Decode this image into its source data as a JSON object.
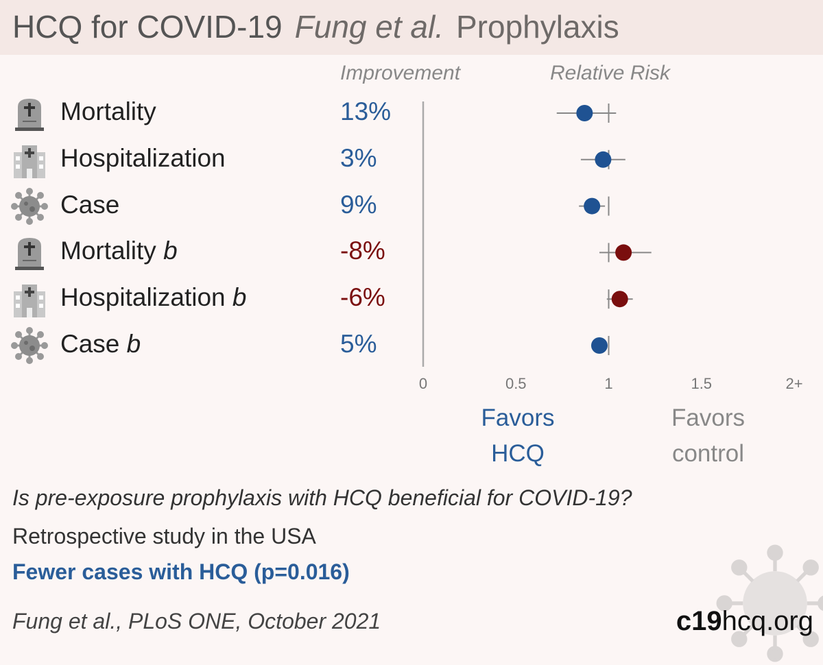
{
  "header": {
    "title": "HCQ for COVID-19",
    "author": "Fung et al.",
    "tag": "Prophylaxis"
  },
  "columns": {
    "improvement": "Improvement",
    "relative_risk": "Relative Risk"
  },
  "rows": [
    {
      "label": "Mortality",
      "suffix": "",
      "icon": "tombstone-icon",
      "value": "13%"
    },
    {
      "label": "Hospitalization",
      "suffix": "",
      "icon": "hospital-icon",
      "value": "3%"
    },
    {
      "label": "Case",
      "suffix": "",
      "icon": "virus-icon",
      "value": "9%"
    },
    {
      "label": "Mortality",
      "suffix": "b",
      "icon": "tombstone-icon",
      "value": "-8%"
    },
    {
      "label": "Hospitalization",
      "suffix": "b",
      "icon": "hospital-icon",
      "value": "-6%"
    },
    {
      "label": "Case",
      "suffix": "b",
      "icon": "virus-icon",
      "value": "5%"
    }
  ],
  "favors": {
    "left_line1": "Favors",
    "left_line2": "HCQ",
    "right_line1": "Favors",
    "right_line2": "control"
  },
  "footer": {
    "question": "Is pre-exposure prophylaxis with HCQ beneficial for COVID-19?",
    "design": "Retrospective study in the USA",
    "finding": "Fewer cases with HCQ (p=0.016)",
    "citation": "Fung et al., PLoS ONE, October 2021",
    "brand_bold": "c19",
    "brand_rest": "hcq.org"
  },
  "colors": {
    "benefit": "#1f5292",
    "harm": "#7a0e0e",
    "axis": "#aaaaaa",
    "ci": "#888888"
  },
  "chart_data": {
    "type": "scatter",
    "title": "",
    "xlabel": "",
    "ylabel": "",
    "xlim": [
      0,
      2
    ],
    "x_ticks": [
      "0",
      "0.5",
      "1",
      "1.5",
      "2+"
    ],
    "x_tick_values": [
      0,
      0.5,
      1,
      1.5,
      2
    ],
    "reference_line": 1,
    "categories": [
      "Mortality",
      "Hospitalization",
      "Case",
      "Mortality b",
      "Hospitalization b",
      "Case b"
    ],
    "series": [
      {
        "values": [
          0.87,
          0.97,
          0.91,
          1.08,
          1.06,
          0.95
        ],
        "ci_low": [
          0.72,
          0.85,
          0.84,
          0.95,
          0.99,
          0.95
        ],
        "ci_high": [
          1.04,
          1.09,
          0.98,
          1.23,
          1.13,
          0.95
        ],
        "improvement_pct": [
          13,
          3,
          9,
          -8,
          -6,
          5
        ]
      }
    ]
  }
}
